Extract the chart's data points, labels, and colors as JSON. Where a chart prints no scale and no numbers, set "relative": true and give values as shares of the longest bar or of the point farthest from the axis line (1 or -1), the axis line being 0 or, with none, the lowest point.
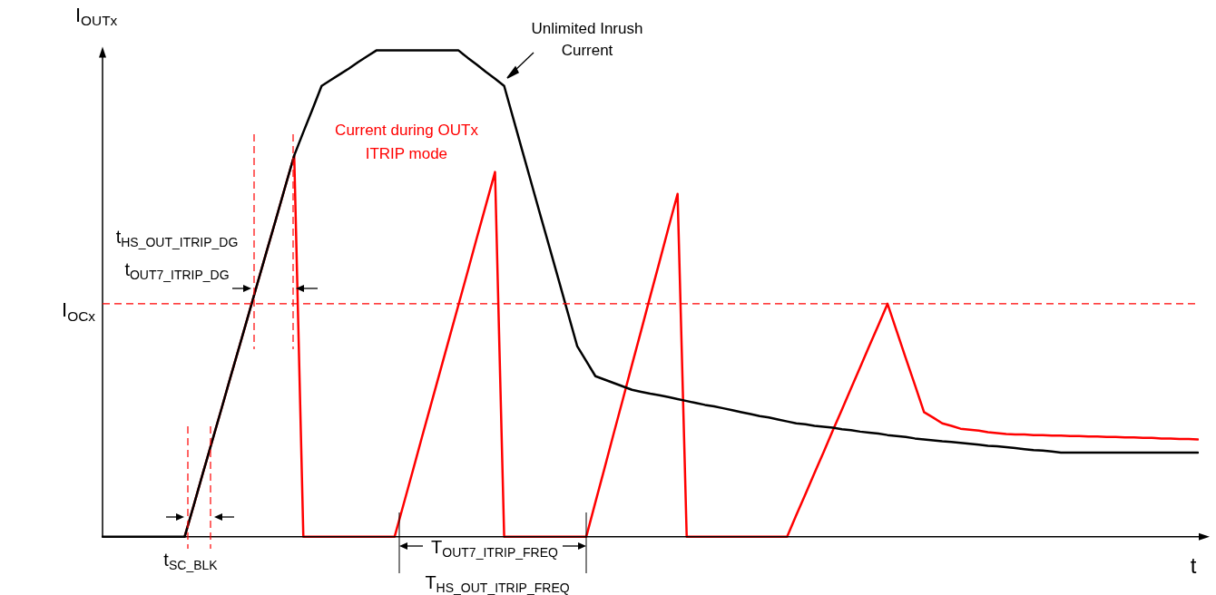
{
  "chart_data": {
    "type": "line",
    "relative": true,
    "xlabel": "t",
    "ylabel": "I$_{OUTx}$",
    "tick_labels": false,
    "legend": false,
    "marker": "none",
    "categories": [
      null,
      null,
      null,
      null,
      null,
      null,
      null,
      null,
      null,
      null,
      null,
      null,
      null,
      null,
      null,
      null,
      null,
      null,
      null,
      null,
      null,
      null,
      null,
      null,
      null,
      null,
      null,
      null,
      null,
      null,
      null,
      null,
      null,
      null,
      null,
      null,
      null,
      null,
      null,
      null,
      null,
      null,
      null,
      null,
      null,
      null,
      null,
      null,
      null,
      null,
      null,
      null,
      null,
      null,
      null,
      null,
      null,
      null,
      null,
      null,
      null,
      null,
      null,
      null,
      null,
      null,
      null,
      null,
      null,
      null,
      null,
      null,
      null,
      null,
      null,
      null,
      null,
      null,
      null,
      null,
      null,
      null,
      null,
      null,
      null,
      null,
      null,
      null,
      null,
      null,
      null,
      null,
      null,
      null,
      null,
      null,
      null,
      null,
      null,
      null,
      null,
      null,
      null,
      null,
      null,
      null,
      null,
      null,
      null,
      null,
      null,
      null,
      null,
      null,
      null,
      null,
      null,
      null,
      null,
      null,
      null
    ],
    "series": [
      {
        "color": "#000000",
        "values": [
          0,
          0,
          0,
          0,
          0,
          0,
          0,
          0,
          0,
          0,
          0.065,
          0.131,
          0.196,
          0.261,
          0.327,
          0.392,
          0.457,
          0.523,
          0.588,
          0.653,
          0.719,
          0.784,
          0.832,
          0.879,
          0.927,
          0.939,
          0.951,
          0.963,
          0.976,
          0.988,
          1,
          1,
          1,
          1,
          1,
          1,
          1,
          1,
          1,
          1,
          0.985,
          0.971,
          0.956,
          0.942,
          0.927,
          0.86,
          0.793,
          0.726,
          0.659,
          0.593,
          0.526,
          0.459,
          0.392,
          0.361,
          0.33,
          0.323,
          0.316,
          0.309,
          0.302,
          0.298,
          0.294,
          0.291,
          0.287,
          0.283,
          0.279,
          0.275,
          0.271,
          0.268,
          0.264,
          0.26,
          0.256,
          0.252,
          0.248,
          0.245,
          0.241,
          0.237,
          0.233,
          0.231,
          0.228,
          0.226,
          0.224,
          0.221,
          0.219,
          0.216,
          0.214,
          0.212,
          0.209,
          0.207,
          0.205,
          0.202,
          0.2,
          0.198,
          0.196,
          0.195,
          0.193,
          0.191,
          0.189,
          0.187,
          0.186,
          0.184,
          0.182,
          0.18,
          0.178,
          0.177,
          0.175,
          0.173,
          0.173,
          0.173,
          0.173,
          0.173,
          0.173,
          0.173,
          0.173,
          0.173,
          0.173,
          0.173,
          0.173,
          0.173,
          0.173,
          0.173,
          0.173
        ]
      },
      {
        "color": "#ff0000",
        "values": [
          null,
          null,
          null,
          null,
          null,
          null,
          null,
          null,
          null,
          0,
          0.065,
          0.131,
          0.196,
          0.261,
          0.327,
          0.392,
          0.457,
          0.523,
          0.588,
          0.653,
          0.719,
          0.784,
          0,
          0,
          0,
          0,
          0,
          0,
          0,
          0,
          0,
          0,
          0,
          0.068,
          0.136,
          0.205,
          0.273,
          0.341,
          0.409,
          0.477,
          0.545,
          0.614,
          0.682,
          0.75,
          0,
          0,
          0,
          0,
          0,
          0,
          0,
          0,
          0,
          0,
          0.071,
          0.141,
          0.212,
          0.282,
          0.353,
          0.423,
          0.494,
          0.564,
          0.635,
          0.705,
          0,
          0,
          0,
          0,
          0,
          0,
          0,
          0,
          0,
          0,
          0,
          0,
          0.044,
          0.087,
          0.131,
          0.174,
          0.218,
          0.261,
          0.305,
          0.348,
          0.392,
          0.435,
          0.479,
          0.423,
          0.367,
          0.312,
          0.256,
          0.245,
          0.233,
          0.228,
          0.222,
          0.22,
          0.218,
          0.215,
          0.213,
          0.211,
          0.21,
          0.21,
          0.209,
          0.209,
          0.208,
          0.208,
          0.207,
          0.207,
          0.206,
          0.206,
          0.205,
          0.205,
          0.204,
          0.204,
          0.203,
          0.203,
          0.202,
          0.202,
          0.201,
          0.201,
          0.2
        ]
      }
    ],
    "ref_lines": [
      {
        "axis": "y",
        "value": 0.479,
        "label": "I$_{OCx}$",
        "color": "#ff0000",
        "line_style": "dashed"
      }
    ],
    "annotations": [
      "Unlimited Inrush",
      "Current",
      "Current during OUTx",
      "ITRIP mode",
      "t$_{HS_OUT_ITRIP_DG}$",
      "t$_{OUT7_ITRIP_DG}$",
      "t$_{SC_BLK}$",
      "T$_{OUT7_ITRIP_FREQ}$",
      "T$_{HS_OUT_ITRIP_FREQ}$"
    ]
  }
}
